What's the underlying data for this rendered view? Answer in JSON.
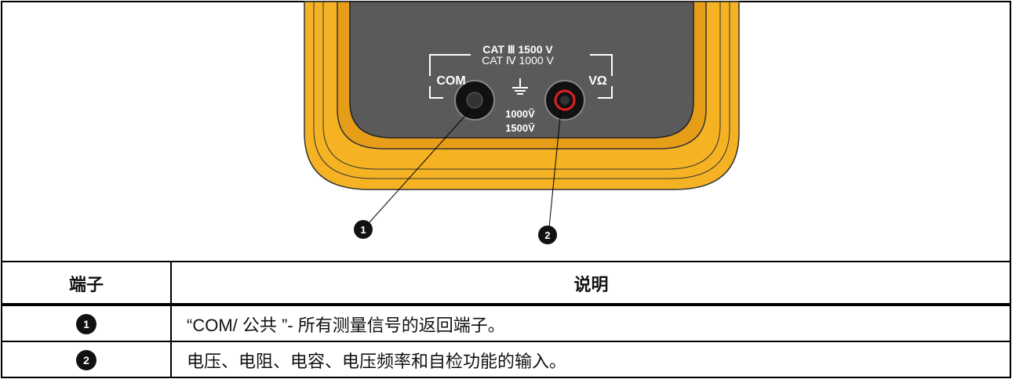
{
  "figure": {
    "labels": {
      "cat3": "CAT Ⅲ  1500 V",
      "cat4": "CAT Ⅳ  1000 V",
      "com": "COM",
      "vohm": "VΩ",
      "ac": "1000Ṽ",
      "dc": "1500V̄"
    },
    "callouts": [
      "1",
      "2"
    ]
  },
  "table": {
    "header": [
      "端子",
      "说明"
    ],
    "rows": [
      [
        "1",
        "“COM/ 公共 ”- 所有测量信号的返回端子。"
      ],
      [
        "2",
        "电压、电阻、电容、电压频率和自检功能的输入。"
      ]
    ]
  }
}
